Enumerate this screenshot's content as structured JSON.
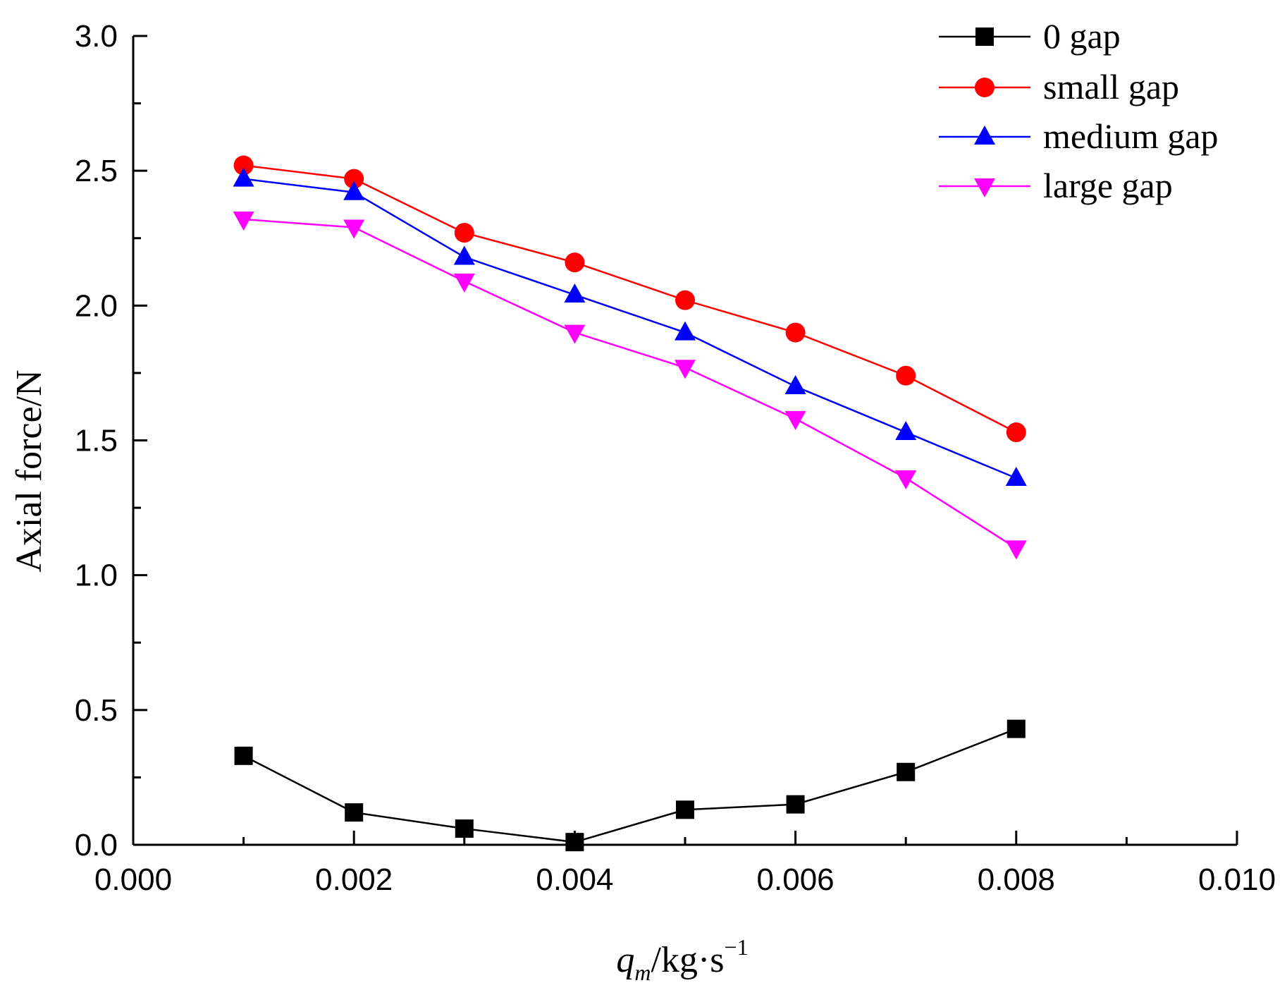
{
  "chart_data": {
    "type": "line",
    "title": "",
    "xlabel": {
      "main": "q",
      "subscript": "m",
      "unit": "/kg·s",
      "superscript": "−1"
    },
    "ylabel": "Axial force/N",
    "xlim": [
      0.0,
      0.01
    ],
    "ylim": [
      0.0,
      3.0
    ],
    "x_ticks": [
      "0.000",
      "0.002",
      "0.004",
      "0.006",
      "0.008",
      "0.010"
    ],
    "x_tick_values": [
      0.0,
      0.002,
      0.004,
      0.006,
      0.008,
      0.01
    ],
    "y_ticks": [
      "0.0",
      "0.5",
      "1.0",
      "1.5",
      "2.0",
      "2.5",
      "3.0"
    ],
    "y_tick_values": [
      0.0,
      0.5,
      1.0,
      1.5,
      2.0,
      2.5,
      3.0
    ],
    "x": [
      0.001,
      0.002,
      0.003,
      0.004,
      0.005,
      0.006,
      0.007,
      0.008
    ],
    "legend_position": "top-right",
    "series": [
      {
        "name": "0 gap",
        "color": "#000000",
        "marker": "square",
        "values": [
          0.33,
          0.12,
          0.06,
          0.01,
          0.13,
          0.15,
          0.27,
          0.43
        ]
      },
      {
        "name": "small gap",
        "color": "#ff0000",
        "marker": "circle",
        "values": [
          2.52,
          2.47,
          2.27,
          2.16,
          2.02,
          1.9,
          1.74,
          1.53
        ]
      },
      {
        "name": "medium gap",
        "color": "#0000ff",
        "marker": "triangle-up",
        "values": [
          2.47,
          2.42,
          2.18,
          2.04,
          1.9,
          1.7,
          1.53,
          1.36
        ]
      },
      {
        "name": "large gap",
        "color": "#ff00ff",
        "marker": "triangle-down",
        "values": [
          2.32,
          2.29,
          2.09,
          1.9,
          1.77,
          1.58,
          1.36,
          1.1
        ]
      }
    ]
  }
}
